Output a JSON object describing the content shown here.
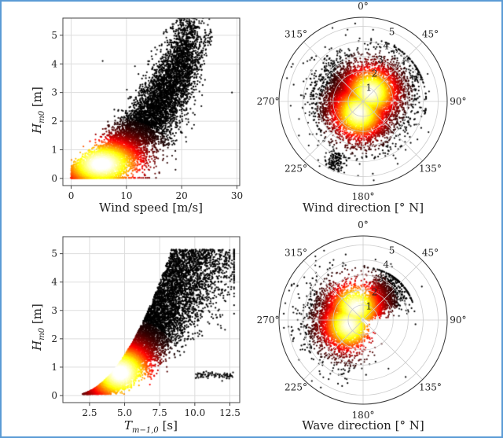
{
  "figure": {
    "colormap": "hot",
    "point_color": "#000000"
  },
  "chart_data": [
    {
      "type": "scatter",
      "id": "hs-vs-windspeed",
      "title": "",
      "xlabel": "Wind speed [m/s]",
      "ylabel": "H_m0 [m]",
      "xlim": [
        -1.5,
        30.5
      ],
      "ylim": [
        -0.25,
        5.6
      ],
      "xticks": [
        0,
        10,
        20,
        30
      ],
      "xtick_labels": [
        "0",
        "10",
        "20",
        "30"
      ],
      "yticks": [
        0,
        1,
        2,
        3,
        4,
        5
      ],
      "ytick_labels": [
        "0",
        "1",
        "2",
        "3",
        "4",
        "5"
      ],
      "grid": true,
      "density_colored": true,
      "density_peak": {
        "x": 5.5,
        "y": 0.5
      },
      "outliers": [
        {
          "x": 5.7,
          "y": 4.1
        },
        {
          "x": 29.1,
          "y": 3.0
        },
        {
          "x": 21.5,
          "y": 5.4
        },
        {
          "x": 25.2,
          "y": 5.2
        }
      ]
    },
    {
      "type": "scatter",
      "id": "hs-vs-winddir",
      "polar": true,
      "xlabel": "Wind direction [° N]",
      "theta_ticks": [
        0,
        45,
        90,
        135,
        180,
        225,
        270,
        315
      ],
      "theta_labels": [
        "0°",
        "45°",
        "90°",
        "135°",
        "180°",
        "225°",
        "270°",
        "315°"
      ],
      "r_ticks": [
        1,
        2,
        3,
        4,
        5
      ],
      "r_labels": [
        "1",
        "2",
        "3",
        "4",
        "5"
      ],
      "rlim": [
        0,
        5.6
      ],
      "grid": true,
      "density_colored": true,
      "density_peaks": [
        {
          "theta": 200,
          "r": 0.8
        },
        {
          "theta": 40,
          "r": 0.8
        }
      ]
    },
    {
      "type": "scatter",
      "id": "hs-vs-period",
      "xlabel": "T_m-1,0 [s]",
      "ylabel": "H_m0 [m]",
      "xlim": [
        0.6,
        13.2
      ],
      "ylim": [
        -0.25,
        5.6
      ],
      "xticks": [
        2.5,
        5.0,
        7.5,
        10.0,
        12.5
      ],
      "xtick_labels": [
        "2.5",
        "5.0",
        "7.5",
        "10.0",
        "12.5"
      ],
      "yticks": [
        0,
        1,
        2,
        3,
        4,
        5
      ],
      "ytick_labels": [
        "0",
        "1",
        "2",
        "3",
        "4",
        "5"
      ],
      "grid": true,
      "density_colored": true,
      "density_peak": {
        "x": 4.7,
        "y": 0.8
      }
    },
    {
      "type": "scatter",
      "id": "hs-vs-wavedir",
      "polar": true,
      "xlabel": "Wave direction [° N]",
      "theta_ticks": [
        0,
        45,
        90,
        135,
        180,
        225,
        270,
        315
      ],
      "theta_labels": [
        "0°",
        "45°",
        "90°",
        "135°",
        "180°",
        "225°",
        "270°",
        "315°"
      ],
      "r_ticks": [
        1,
        2,
        3,
        4,
        5
      ],
      "r_labels": [
        "1",
        "2",
        "3",
        "4",
        "5"
      ],
      "rlim": [
        0,
        5.6
      ],
      "grid": true,
      "density_colored": true,
      "density_peaks": [
        {
          "theta": 330,
          "r": 1.0
        },
        {
          "theta": 250,
          "r": 1.0
        }
      ]
    }
  ]
}
